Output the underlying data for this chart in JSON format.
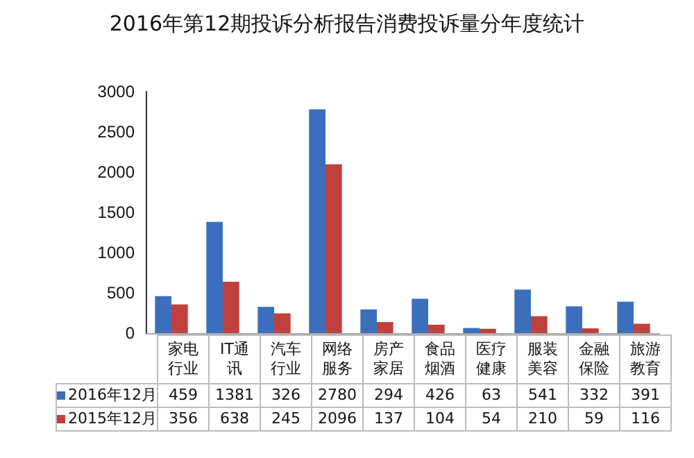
{
  "chart_data": {
    "type": "bar",
    "title": "2016年第12期投诉分析报告消费投诉量分年度统计",
    "categories": [
      "家电行业",
      "IT通讯",
      "汽车行业",
      "网络服务",
      "房产家居",
      "食品烟酒",
      "医疗健康",
      "服装美容",
      "金融保险",
      "旅游教育"
    ],
    "series": [
      {
        "name": "2016年12月",
        "color": "#3b6fbe",
        "values": [
          459,
          1381,
          326,
          2780,
          294,
          426,
          63,
          541,
          332,
          391
        ]
      },
      {
        "name": "2015年12月",
        "color": "#c0403d",
        "values": [
          356,
          638,
          245,
          2096,
          137,
          104,
          54,
          210,
          59,
          116
        ]
      }
    ],
    "ylim": [
      0,
      3000
    ],
    "yticks": [
      0,
      500,
      1000,
      1500,
      2000,
      2500,
      3000
    ],
    "grid": false,
    "legend": "bottom",
    "data_labels": true
  }
}
